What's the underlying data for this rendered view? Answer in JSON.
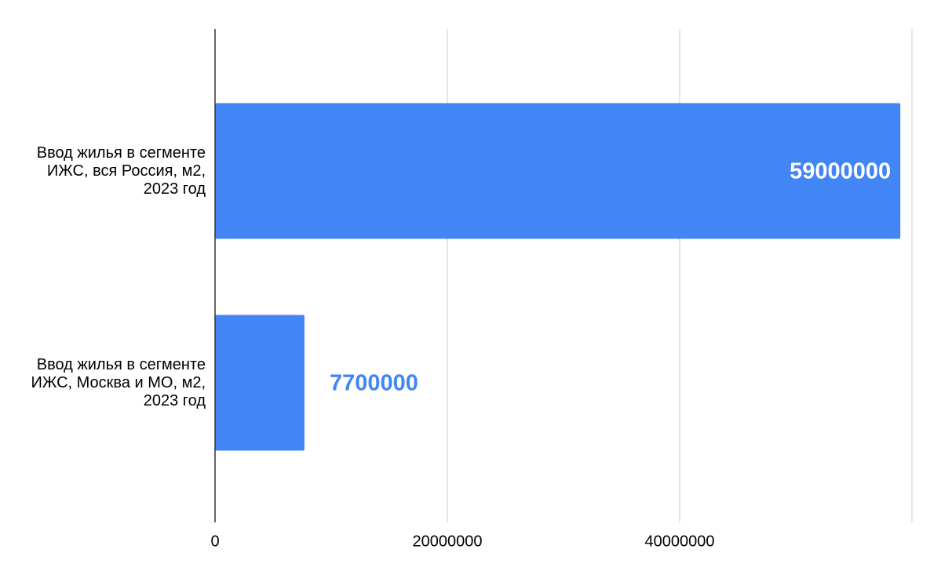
{
  "chart_data": {
    "type": "hbar",
    "categories": [
      "Ввод жилья в сегменте ИЖС, вся Россия, м2, 2023 год",
      "Ввод жилья в сегменте ИЖС, Москва и МО, м2, 2023 год"
    ],
    "values": [
      59000000,
      7700000
    ],
    "color": "#4285f4",
    "xlim": [
      0,
      60000000
    ],
    "xticks": [
      0,
      20000000,
      40000000
    ],
    "grid": true
  }
}
